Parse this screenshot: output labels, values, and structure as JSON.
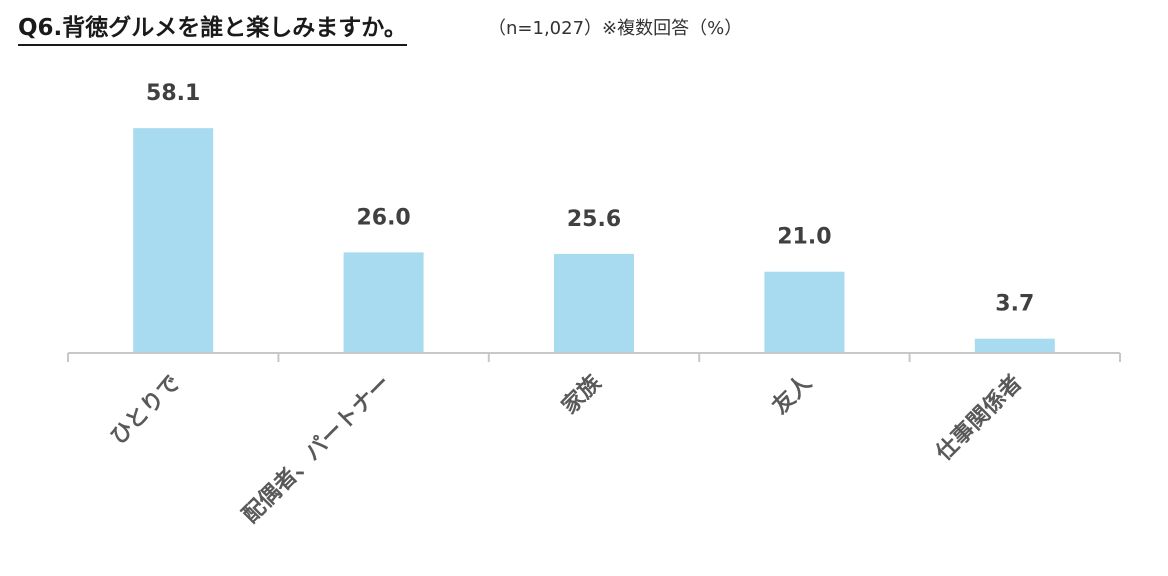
{
  "header": {
    "title": "Q6.背徳グルメを誰と楽しみますか。",
    "subtitle": "（n=1,027）※複数回答（%）"
  },
  "colors": {
    "bar": "#a9dbf0",
    "axis": "#c8c8c8",
    "value_text": "#404040",
    "category_text": "#595959"
  },
  "chart_data": {
    "type": "bar",
    "title": "Q6.背徳グルメを誰と楽しみますか。",
    "categories": [
      "ひとりで",
      "配偶者、パートナー",
      "家族",
      "友人",
      "仕事関係者"
    ],
    "values": [
      58.1,
      26.0,
      25.6,
      21.0,
      3.7
    ],
    "value_labels": [
      "58.1",
      "26.0",
      "25.6",
      "21.0",
      "3.7"
    ],
    "unit": "%",
    "xlabel": "",
    "ylabel": "",
    "grid": false,
    "legend": "none"
  }
}
